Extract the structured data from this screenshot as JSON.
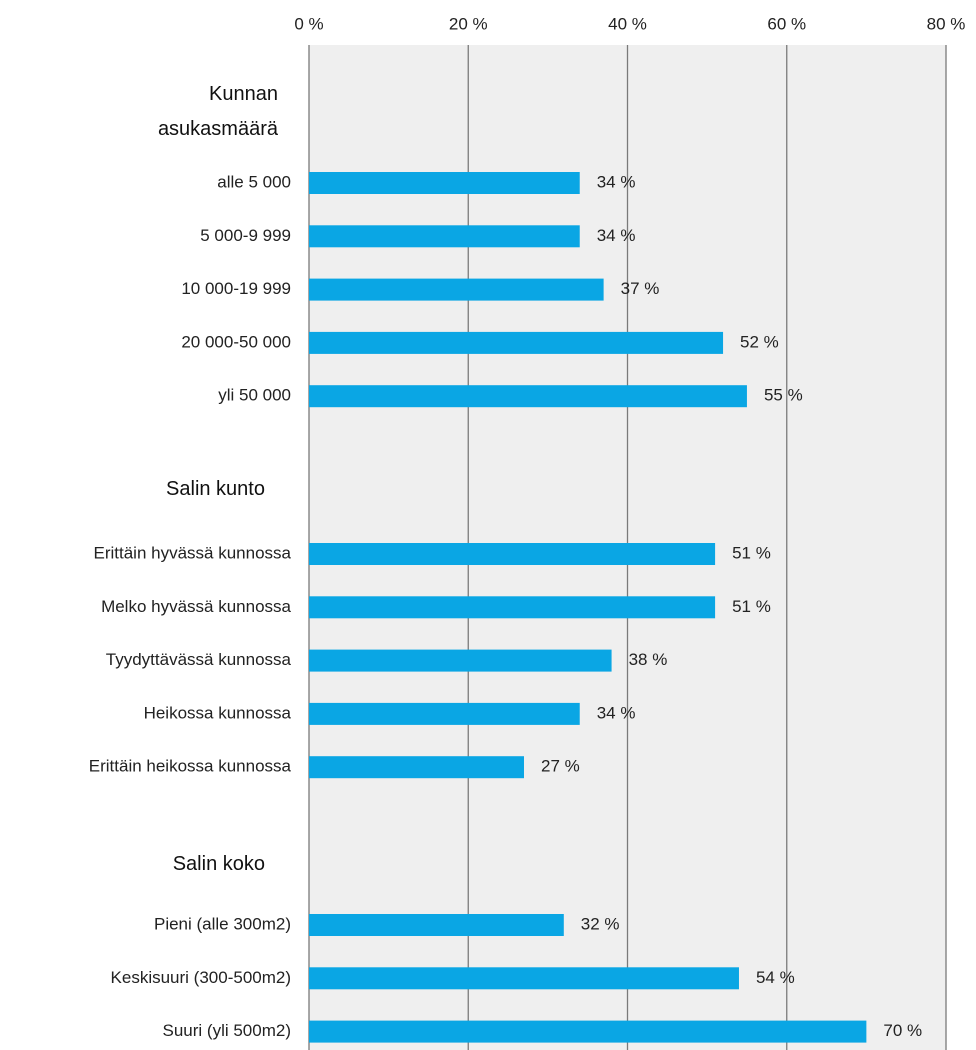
{
  "chart_data": {
    "type": "bar",
    "orientation": "horizontal",
    "color": "#0aa6e4",
    "grid": true,
    "xlim": [
      0,
      80
    ],
    "xticks": [
      {
        "value": 0,
        "label": "0 %"
      },
      {
        "value": 20,
        "label": "20 %"
      },
      {
        "value": 40,
        "label": "40 %"
      },
      {
        "value": 60,
        "label": "60 %"
      },
      {
        "value": 80,
        "label": "80 %"
      }
    ],
    "groups": [
      {
        "name": "Kunnan asukasmäärä",
        "categories": [
          "alle 5 000",
          "5 000-9 999",
          "10 000-19 999",
          "20 000-50 000",
          "yli 50 000"
        ],
        "values": [
          34,
          34,
          37,
          52,
          55
        ],
        "value_labels": [
          "34 %",
          "34 %",
          "37 %",
          "52 %",
          "55 %"
        ]
      },
      {
        "name": "Salin kunto",
        "categories": [
          "Erittäin hyvässä kunnossa",
          "Melko hyvässä kunnossa",
          "Tyydyttävässä kunnossa",
          "Heikossa kunnossa",
          "Erittäin heikossa kunnossa"
        ],
        "values": [
          51,
          51,
          38,
          34,
          27
        ],
        "value_labels": [
          "51 %",
          "51 %",
          "38 %",
          "34 %",
          "27 %"
        ]
      },
      {
        "name": "Salin koko",
        "categories": [
          "Pieni (alle 300m2)",
          "Keskisuuri (300-500m2)",
          "Suuri (yli 500m2)"
        ],
        "values": [
          32,
          54,
          70
        ],
        "value_labels": [
          "32 %",
          "54 %",
          "70 %"
        ]
      }
    ]
  }
}
